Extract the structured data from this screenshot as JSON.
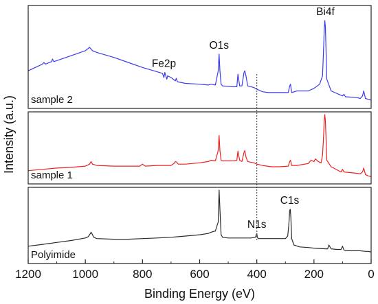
{
  "chart_data": {
    "type": "line",
    "xlabel": "Binding Energy (eV)",
    "ylabel": "Intensity (a.u.)",
    "xlim": [
      1200,
      0
    ],
    "x_reversed": true,
    "x_ticks": [
      1200,
      1000,
      800,
      600,
      400,
      200,
      0
    ],
    "grid": false,
    "legend": "none",
    "reference_line": {
      "x": 400,
      "style": "dotted",
      "color": "#555555"
    },
    "panels": [
      {
        "label": "sample 2",
        "color": "#3a3af0",
        "ylim": [
          0,
          100
        ],
        "x": [
          1200,
          1150,
          1145,
          1140,
          1118,
          1115,
          1110,
          1050,
          1000,
          985,
          980,
          975,
          960,
          900,
          850,
          800,
          760,
          730,
          725,
          722,
          715,
          712,
          700,
          685,
          682,
          678,
          650,
          600,
          570,
          560,
          545,
          535,
          532,
          529,
          525,
          520,
          480,
          470,
          466,
          460,
          452,
          445,
          442,
          438,
          432,
          410,
          400,
          380,
          360,
          320,
          290,
          285,
          282,
          278,
          260,
          220,
          200,
          180,
          170,
          166,
          164,
          162,
          160,
          157,
          155,
          140,
          100,
          95,
          90,
          50,
          38,
          30,
          26,
          20,
          10,
          0
        ],
        "y": [
          40,
          48,
          50,
          48,
          51,
          54,
          51,
          58,
          64,
          68,
          66,
          64,
          62,
          56,
          50,
          44,
          40,
          37,
          32,
          38,
          30,
          34,
          32,
          28,
          31,
          27,
          25,
          24,
          23,
          24,
          23,
          40,
          60,
          40,
          24,
          22,
          21,
          21,
          36,
          22,
          22,
          38,
          40,
          34,
          22,
          20,
          18,
          15,
          14,
          14,
          14,
          22,
          24,
          14,
          16,
          16,
          19,
          24,
          34,
          70,
          90,
          100,
          92,
          55,
          30,
          16,
          10,
          12,
          9,
          8,
          7,
          10,
          16,
          7,
          6,
          5
        ]
      },
      {
        "label": "sample 1",
        "color": "#ef2020",
        "ylim": [
          0,
          100
        ],
        "x": [
          1200,
          1150,
          1100,
          1050,
          1000,
          985,
          980,
          975,
          960,
          900,
          850,
          810,
          800,
          790,
          750,
          700,
          690,
          685,
          680,
          675,
          650,
          600,
          570,
          560,
          545,
          535,
          532,
          529,
          525,
          520,
          480,
          470,
          466,
          460,
          452,
          445,
          442,
          438,
          432,
          410,
          400,
          380,
          350,
          320,
          290,
          285,
          282,
          278,
          260,
          220,
          210,
          200,
          195,
          185,
          175,
          170,
          166,
          164,
          162,
          160,
          157,
          155,
          140,
          105,
          100,
          95,
          50,
          38,
          30,
          26,
          20,
          10,
          0
        ],
        "y": [
          14,
          16,
          18,
          19,
          21,
          24,
          28,
          24,
          22,
          21,
          21,
          21,
          24,
          21,
          22,
          22,
          25,
          28,
          27,
          24,
          24,
          26,
          28,
          30,
          29,
          45,
          68,
          45,
          30,
          29,
          29,
          30,
          44,
          30,
          28,
          42,
          45,
          35,
          28,
          26,
          24,
          22,
          20,
          20,
          21,
          28,
          30,
          22,
          22,
          25,
          30,
          28,
          32,
          28,
          26,
          38,
          70,
          92,
          100,
          90,
          55,
          30,
          20,
          12,
          16,
          12,
          10,
          9,
          12,
          18,
          8,
          6,
          5
        ]
      },
      {
        "label": "Polyimide",
        "color": "#2a2a2a",
        "ylim": [
          0,
          100
        ],
        "x": [
          1200,
          1150,
          1100,
          1050,
          1000,
          990,
          985,
          980,
          975,
          970,
          960,
          900,
          850,
          800,
          750,
          700,
          650,
          600,
          570,
          560,
          545,
          535,
          532,
          529,
          525,
          520,
          500,
          450,
          420,
          405,
          400,
          398,
          395,
          390,
          380,
          350,
          320,
          300,
          292,
          288,
          286,
          285,
          283,
          281,
          278,
          270,
          250,
          220,
          200,
          160,
          152,
          148,
          140,
          120,
          105,
          100,
          95,
          80,
          60,
          40,
          20,
          10,
          0
        ],
        "y": [
          12,
          15,
          18,
          21,
          25,
          27,
          30,
          34,
          30,
          26,
          24,
          23,
          23,
          24,
          25,
          26,
          28,
          30,
          32,
          34,
          36,
          50,
          100,
          70,
          30,
          26,
          25,
          25,
          25,
          26,
          32,
          26,
          24,
          24,
          24,
          24,
          24,
          24,
          28,
          45,
          60,
          68,
          70,
          58,
          24,
          14,
          11,
          10,
          9,
          8,
          8,
          14,
          8,
          7,
          7,
          12,
          6,
          5,
          5,
          5,
          4,
          4,
          3
        ]
      }
    ],
    "annotations": [
      {
        "text": "Bi4f",
        "panel": 0,
        "x": 160,
        "y": 100
      },
      {
        "text": "O1s",
        "panel": 0,
        "x": 532,
        "y": 60
      },
      {
        "text": "Fe2p",
        "panel": 0,
        "x": 725,
        "y": 38
      },
      {
        "text": "N1s",
        "panel": 2,
        "x": 400,
        "y": 32
      },
      {
        "text": "C1s",
        "panel": 2,
        "x": 285,
        "y": 70
      }
    ]
  }
}
